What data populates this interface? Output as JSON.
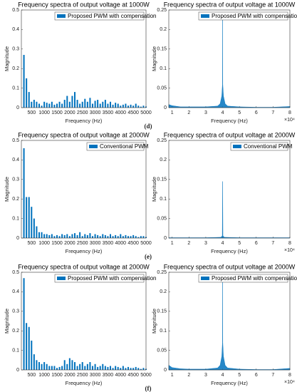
{
  "chart_data": [
    {
      "type": "bar",
      "title": "Frequency spectra of output voltage at 1000W",
      "xlabel": "Frequency (Hz)",
      "ylabel": "Magnitude",
      "x": [
        200,
        300,
        400,
        500,
        600,
        700,
        800,
        900,
        1000,
        1100,
        1200,
        1300,
        1400,
        1500,
        1600,
        1700,
        1800,
        1900,
        2000,
        2100,
        2200,
        2300,
        2400,
        2500,
        2600,
        2700,
        2800,
        2900,
        3000,
        3100,
        3200,
        3300,
        3400,
        3500,
        3600,
        3700,
        3800,
        3900,
        4000,
        4100,
        4200,
        4300,
        4400,
        4500,
        4600,
        4700,
        4800,
        4900,
        5000
      ],
      "series": [
        {
          "name": "Proposed PWM with compensation",
          "color": "#0072bd",
          "values": [
            0.27,
            0.15,
            0.08,
            0.03,
            0.04,
            0.03,
            0.02,
            0.01,
            0.03,
            0.025,
            0.02,
            0.03,
            0.015,
            0.02,
            0.03,
            0.02,
            0.04,
            0.06,
            0.03,
            0.06,
            0.08,
            0.04,
            0.02,
            0.03,
            0.045,
            0.03,
            0.05,
            0.02,
            0.035,
            0.04,
            0.02,
            0.03,
            0.04,
            0.02,
            0.03,
            0.015,
            0.025,
            0.02,
            0.01,
            0.015,
            0.02,
            0.01,
            0.015,
            0.01,
            0.02,
            0.01,
            0.005,
            0.01,
            0.005
          ]
        }
      ],
      "xlim": [
        100,
        5000
      ],
      "xticks": [
        500,
        1000,
        1500,
        2000,
        2500,
        3000,
        3500,
        4000,
        4500,
        5000
      ],
      "ylim": [
        0,
        0.5
      ],
      "yticks": [
        0,
        0.1,
        0.2,
        0.3,
        0.4,
        0.5
      ],
      "legend": "upper right"
    },
    {
      "type": "area",
      "title": "Frequency spectra of output voltage at 1000W",
      "xlabel": "Frequency (Hz)",
      "ylabel": "Magnitude",
      "x_multiplier": "×10⁴",
      "x": [
        0.8,
        1,
        1.5,
        2,
        3,
        3.7,
        3.85,
        3.95,
        3.99,
        4,
        4.01,
        4.05,
        4.15,
        4.3,
        5,
        6,
        7,
        8
      ],
      "series": [
        {
          "name": "Proposed PWM with compensation",
          "color": "#0072bd",
          "values": [
            0.008,
            0.005,
            0.002,
            0.002,
            0.002,
            0.004,
            0.01,
            0.03,
            0.06,
            0.24,
            0.06,
            0.03,
            0.01,
            0.004,
            0.002,
            0.001,
            0.001,
            0.003
          ]
        }
      ],
      "xlim": [
        0.8,
        8
      ],
      "xticks": [
        1,
        2,
        3,
        4,
        5,
        6,
        7,
        8
      ],
      "ylim": [
        0,
        0.25
      ],
      "yticks": [
        0,
        0.05,
        0.1,
        0.15,
        0.2,
        0.25
      ],
      "legend": "upper right"
    },
    {
      "type": "bar",
      "title": "Frequency spectra of output voltage at 2000W",
      "xlabel": "Frequency (Hz)",
      "ylabel": "Magnitude",
      "x": [
        200,
        300,
        400,
        500,
        600,
        700,
        800,
        900,
        1000,
        1100,
        1200,
        1300,
        1400,
        1500,
        1600,
        1700,
        1800,
        1900,
        2000,
        2100,
        2200,
        2300,
        2400,
        2500,
        2600,
        2700,
        2800,
        2900,
        3000,
        3100,
        3200,
        3300,
        3400,
        3500,
        3600,
        3700,
        3800,
        3900,
        4000,
        4100,
        4200,
        4300,
        4400,
        4500,
        4600,
        4700,
        4800,
        4900,
        5000
      ],
      "series": [
        {
          "name": "Conventional PWM",
          "color": "#0072bd",
          "values": [
            0.46,
            0.21,
            0.21,
            0.16,
            0.1,
            0.06,
            0.03,
            0.03,
            0.02,
            0.02,
            0.015,
            0.02,
            0.01,
            0.015,
            0.01,
            0.02,
            0.015,
            0.02,
            0.01,
            0.02,
            0.025,
            0.015,
            0.03,
            0.01,
            0.02,
            0.015,
            0.025,
            0.01,
            0.02,
            0.015,
            0.01,
            0.02,
            0.015,
            0.01,
            0.02,
            0.01,
            0.015,
            0.01,
            0.02,
            0.01,
            0.015,
            0.01,
            0.01,
            0.015,
            0.01,
            0.005,
            0.01,
            0.01,
            0.005
          ]
        }
      ],
      "xlim": [
        100,
        5000
      ],
      "xticks": [
        500,
        1000,
        1500,
        2000,
        2500,
        3000,
        3500,
        4000,
        4500,
        5000
      ],
      "ylim": [
        0,
        0.5
      ],
      "yticks": [
        0,
        0.1,
        0.2,
        0.3,
        0.4,
        0.5
      ],
      "legend": "upper right"
    },
    {
      "type": "area",
      "title": "Frequency spectra of output voltage at 2000W",
      "xlabel": "Frequency (Hz)",
      "ylabel": "Magnitude",
      "x_multiplier": "×10⁴",
      "x": [
        0.8,
        1,
        2,
        3,
        3.9,
        3.98,
        4,
        4.02,
        4.1,
        5,
        6,
        7,
        8
      ],
      "series": [
        {
          "name": "Conventional PWM",
          "color": "#0072bd",
          "values": [
            0.001,
            0.001,
            0.001,
            0.001,
            0.002,
            0.006,
            0.145,
            0.006,
            0.002,
            0.001,
            0.001,
            0.001,
            0.001
          ]
        }
      ],
      "xlim": [
        0.8,
        8
      ],
      "xticks": [
        1,
        2,
        3,
        4,
        5,
        6,
        7,
        8
      ],
      "ylim": [
        0,
        0.25
      ],
      "yticks": [
        0,
        0.05,
        0.1,
        0.15,
        0.2,
        0.25
      ],
      "legend": "upper right"
    },
    {
      "type": "bar",
      "title": "Frequency spectra of output voltage at 2000W",
      "xlabel": "Frequency (Hz)",
      "ylabel": "Magnitude",
      "x": [
        200,
        300,
        400,
        500,
        600,
        700,
        800,
        900,
        1000,
        1100,
        1200,
        1300,
        1400,
        1500,
        1600,
        1700,
        1800,
        1900,
        2000,
        2100,
        2200,
        2300,
        2400,
        2500,
        2600,
        2700,
        2800,
        2900,
        3000,
        3100,
        3200,
        3300,
        3400,
        3500,
        3600,
        3700,
        3800,
        3900,
        4000,
        4100,
        4200,
        4300,
        4400,
        4500,
        4600,
        4700,
        4800,
        4900,
        5000
      ],
      "series": [
        {
          "name": "Proposed PWM with compensation",
          "color": "#0072bd",
          "values": [
            0.47,
            0.24,
            0.22,
            0.15,
            0.08,
            0.05,
            0.04,
            0.03,
            0.04,
            0.03,
            0.02,
            0.02,
            0.02,
            0.01,
            0.015,
            0.02,
            0.05,
            0.03,
            0.06,
            0.05,
            0.04,
            0.02,
            0.03,
            0.04,
            0.02,
            0.03,
            0.04,
            0.02,
            0.03,
            0.015,
            0.02,
            0.03,
            0.02,
            0.015,
            0.02,
            0.01,
            0.02,
            0.015,
            0.01,
            0.02,
            0.01,
            0.015,
            0.01,
            0.01,
            0.015,
            0.01,
            0.005,
            0.01,
            0.005
          ]
        }
      ],
      "xlim": [
        100,
        5000
      ],
      "xticks": [
        500,
        1000,
        1500,
        2000,
        2500,
        3000,
        3500,
        4000,
        4500,
        5000
      ],
      "ylim": [
        0,
        0.5
      ],
      "yticks": [
        0,
        0.1,
        0.2,
        0.3,
        0.4,
        0.5
      ],
      "legend": "upper right"
    },
    {
      "type": "area",
      "title": "Frequency spectra of output voltage at 2000W",
      "xlabel": "Frequency (Hz)",
      "ylabel": "Magnitude",
      "x_multiplier": "×10⁴",
      "x": [
        0.8,
        1,
        1.5,
        2,
        3,
        3.7,
        3.85,
        3.95,
        3.99,
        4,
        4.01,
        4.05,
        4.15,
        4.3,
        5,
        6,
        7,
        8
      ],
      "series": [
        {
          "name": "Proposed PWM with compensation",
          "color": "#0072bd",
          "values": [
            0.012,
            0.006,
            0.003,
            0.002,
            0.002,
            0.005,
            0.012,
            0.035,
            0.07,
            0.23,
            0.07,
            0.035,
            0.012,
            0.005,
            0.002,
            0.001,
            0.001,
            0.004
          ]
        }
      ],
      "xlim": [
        0.8,
        8
      ],
      "xticks": [
        1,
        2,
        3,
        4,
        5,
        6,
        7,
        8
      ],
      "ylim": [
        0,
        0.25
      ],
      "yticks": [
        0,
        0.05,
        0.1,
        0.15,
        0.2,
        0.25
      ],
      "legend": "upper right"
    }
  ],
  "captions": [
    "(d)",
    "(e)",
    "(f)"
  ]
}
